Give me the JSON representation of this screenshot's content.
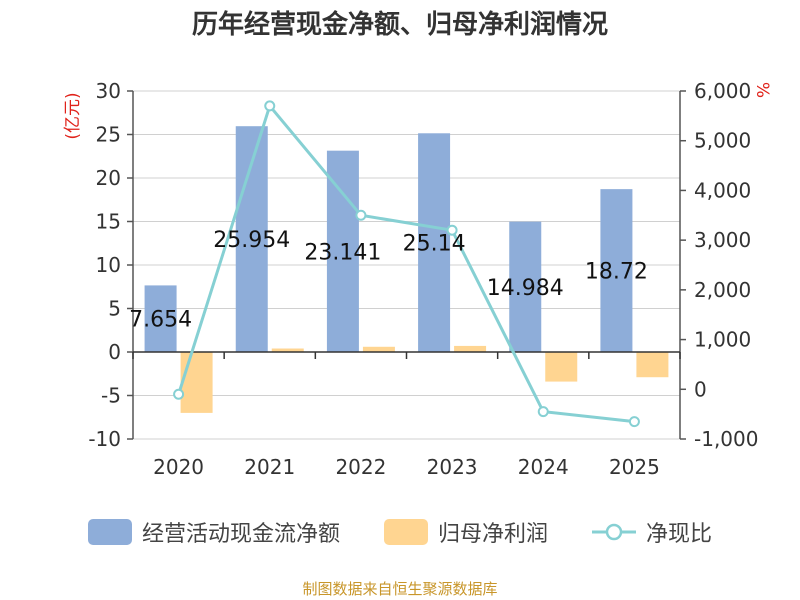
{
  "title": "历年经营现金净额、归母净利润情况",
  "source": "制图数据来自恒生聚源数据库",
  "colors": {
    "bar1": "#8eadd9",
    "bar2": "#ffd591",
    "line": "#86d0d3",
    "unit": "#e0221a"
  },
  "chart_data": {
    "type": "bar",
    "categories": [
      "2020",
      "2021",
      "2022",
      "2023",
      "2024",
      "2025"
    ],
    "series": [
      {
        "name": "经营活动现金流净额",
        "axis": "left",
        "kind": "bar",
        "values": [
          7.654,
          25.954,
          23.141,
          25.14,
          14.984,
          18.72
        ]
      },
      {
        "name": "归母净利润",
        "axis": "left",
        "kind": "bar",
        "values": [
          -7.0,
          0.4,
          0.6,
          0.7,
          -3.4,
          -2.9
        ]
      },
      {
        "name": "净现比",
        "axis": "right",
        "kind": "line",
        "values": [
          -100,
          5700,
          3500,
          3200,
          -450,
          -650
        ]
      }
    ],
    "data_labels": [
      "7.654",
      "25.954",
      "23.141",
      "25.14",
      "14.984",
      "18.72"
    ],
    "left_axis": {
      "label": "(亿元)",
      "ylim": [
        -10,
        30
      ],
      "ticks": [
        "30",
        "25",
        "20",
        "15",
        "10",
        "5",
        "0",
        "-5",
        "-10"
      ]
    },
    "right_axis": {
      "label": "%",
      "ylim": [
        -1000,
        6000
      ],
      "ticks": [
        "6,000",
        "5,000",
        "4,000",
        "3,000",
        "2,000",
        "1,000",
        "0",
        "-1,000"
      ]
    },
    "legend_position": "bottom"
  }
}
